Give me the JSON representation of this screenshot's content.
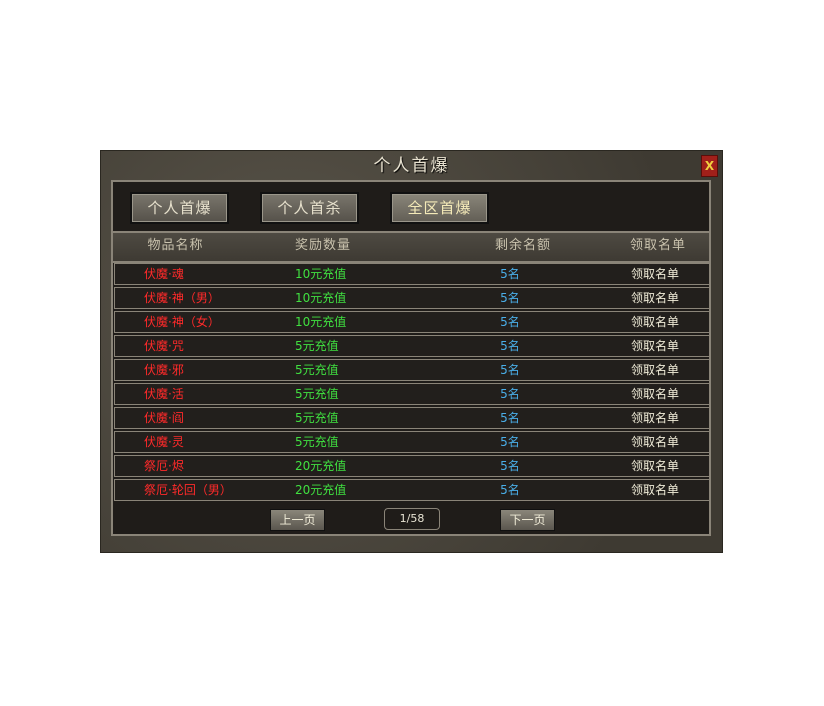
{
  "window": {
    "title": "个人首爆",
    "close_label": "X"
  },
  "tabs": [
    {
      "label": "个人首爆"
    },
    {
      "label": "个人首杀"
    },
    {
      "label": "全区首爆"
    }
  ],
  "columns": [
    "物品名称",
    "奖励数量",
    "剩余名额",
    "领取名单"
  ],
  "rows": [
    {
      "name": "伏魔·魂",
      "reward": "10元充值",
      "remaining": "5名",
      "list": "领取名单"
    },
    {
      "name": "伏魔·神（男）",
      "reward": "10元充值",
      "remaining": "5名",
      "list": "领取名单"
    },
    {
      "name": "伏魔·神（女）",
      "reward": "10元充值",
      "remaining": "5名",
      "list": "领取名单"
    },
    {
      "name": "伏魔·咒",
      "reward": "5元充值",
      "remaining": "5名",
      "list": "领取名单"
    },
    {
      "name": "伏魔·邪",
      "reward": "5元充值",
      "remaining": "5名",
      "list": "领取名单"
    },
    {
      "name": "伏魔·活",
      "reward": "5元充值",
      "remaining": "5名",
      "list": "领取名单"
    },
    {
      "name": "伏魔·阎",
      "reward": "5元充值",
      "remaining": "5名",
      "list": "领取名单"
    },
    {
      "name": "伏魔·灵",
      "reward": "5元充值",
      "remaining": "5名",
      "list": "领取名单"
    },
    {
      "name": "祭厄·烬",
      "reward": "20元充值",
      "remaining": "5名",
      "list": "领取名单"
    },
    {
      "name": "祭厄·轮回（男）",
      "reward": "20元充值",
      "remaining": "5名",
      "list": "领取名单"
    }
  ],
  "pagination": {
    "prev": "上一页",
    "page": "1/58",
    "next": "下一页"
  },
  "colors": {
    "name": "#ff2a2a",
    "reward": "#40e040",
    "remaining": "#4aaee8"
  }
}
